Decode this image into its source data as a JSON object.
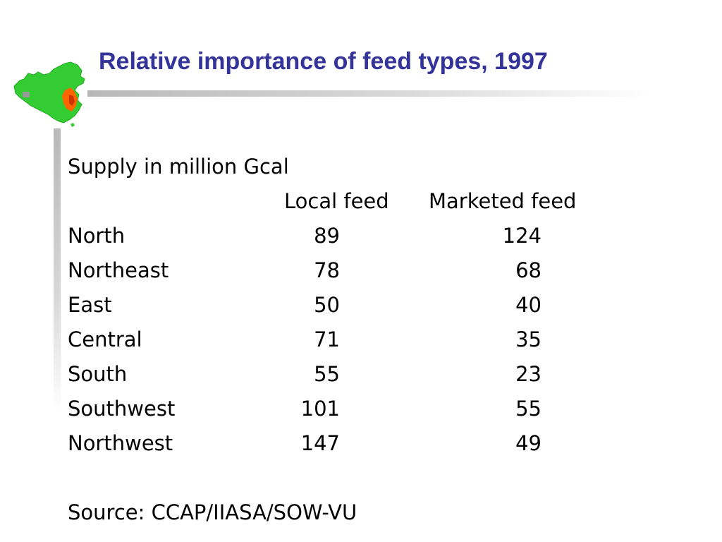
{
  "slide": {
    "title": "Relative importance of feed types, 1997"
  },
  "logo": {
    "icon": "china-map-icon",
    "colors": [
      "#33cc33",
      "#ff6600",
      "#cc3300",
      "#999999"
    ]
  },
  "table": {
    "caption": "Supply in million Gcal",
    "headers": {
      "local": "Local feed",
      "marketed": "Marketed feed"
    },
    "rows": [
      {
        "region": "North",
        "local": "89",
        "marketed": "124"
      },
      {
        "region": "Northeast",
        "local": "78",
        "marketed": "68"
      },
      {
        "region": "East",
        "local": "50",
        "marketed": "40"
      },
      {
        "region": "Central",
        "local": "71",
        "marketed": "35"
      },
      {
        "region": "South",
        "local": "55",
        "marketed": "23"
      },
      {
        "region": "Southwest",
        "local": "101",
        "marketed": "55"
      },
      {
        "region": "Northwest",
        "local": "147",
        "marketed": "49"
      }
    ]
  },
  "source": "Source: CCAP/IIASA/SOW-VU",
  "colors": {
    "title": "#333399",
    "text": "#000000",
    "rule": "#c0c0c0"
  }
}
